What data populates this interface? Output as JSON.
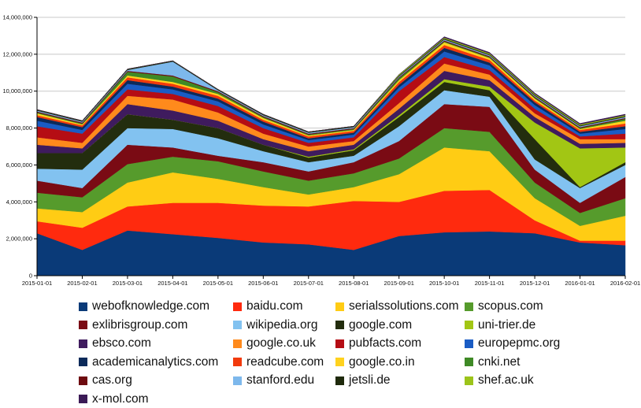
{
  "chart_data": {
    "type": "area",
    "stacked": true,
    "title": "",
    "xlabel": "",
    "ylabel": "",
    "ylim": [
      0,
      14000000
    ],
    "y_ticks": [
      "0",
      "2,000,000",
      "4,000,000",
      "6,000,000",
      "8,000,000",
      "10,000,000",
      "12,000,000",
      "14,000,000"
    ],
    "y_tick_values": [
      0,
      2000000,
      4000000,
      6000000,
      8000000,
      10000000,
      12000000,
      14000000
    ],
    "grid": true,
    "legend_position": "bottom",
    "x": [
      "2015-01-01",
      "2015-02-01",
      "2015-03-01",
      "2015-04-01",
      "2015-05-01",
      "2015-06-01",
      "2015-07-01",
      "2015-08-01",
      "2015-09-01",
      "2015-10-01",
      "2015-11-01",
      "2015-12-01",
      "2016-01-01",
      "2016-02-01"
    ],
    "series": [
      {
        "name": "webofknowledge.com",
        "color": "#0a3a78",
        "values": [
          2300000,
          1400000,
          2450000,
          2250000,
          2050000,
          1800000,
          1700000,
          1400000,
          2150000,
          2350000,
          2400000,
          2300000,
          1800000,
          1650000
        ]
      },
      {
        "name": "baidu.com",
        "color": "#ff2a0e",
        "values": [
          650000,
          1200000,
          1300000,
          1700000,
          1900000,
          2000000,
          2050000,
          2650000,
          1850000,
          2250000,
          2250000,
          700000,
          100000,
          250000
        ]
      },
      {
        "name": "serialssolutions.com",
        "color": "#ffcc14",
        "values": [
          700000,
          850000,
          1300000,
          1650000,
          1300000,
          1000000,
          650000,
          750000,
          1500000,
          2350000,
          2100000,
          1200000,
          800000,
          1350000
        ]
      },
      {
        "name": "scopus.com",
        "color": "#569b2c",
        "values": [
          850000,
          800000,
          1000000,
          850000,
          950000,
          850000,
          750000,
          750000,
          850000,
          1050000,
          1050000,
          850000,
          700000,
          950000
        ]
      },
      {
        "name": "exlibrisgroup.com",
        "color": "#7a0b14",
        "values": [
          650000,
          500000,
          1050000,
          500000,
          300000,
          500000,
          500000,
          600000,
          950000,
          1300000,
          1350000,
          700000,
          550000,
          1150000
        ]
      },
      {
        "name": "wikipedia.org",
        "color": "#82c2f0",
        "values": [
          650000,
          1000000,
          900000,
          1000000,
          950000,
          600000,
          500000,
          350000,
          800000,
          750000,
          550000,
          550000,
          800000,
          650000
        ]
      },
      {
        "name": "google.com",
        "color": "#232d0e",
        "values": [
          850000,
          900000,
          750000,
          500000,
          550000,
          350000,
          250000,
          300000,
          500000,
          450000,
          350000,
          1100000,
          50000,
          150000
        ]
      },
      {
        "name": "uni-trier.de",
        "color": "#a2c614",
        "values": [
          0,
          0,
          0,
          0,
          0,
          0,
          50000,
          50000,
          100000,
          150000,
          200000,
          900000,
          2100000,
          800000
        ]
      },
      {
        "name": "ebsco.com",
        "color": "#3f1b5e",
        "values": [
          450000,
          250000,
          550000,
          500000,
          400000,
          300000,
          300000,
          250000,
          350000,
          450000,
          350000,
          300000,
          250000,
          250000
        ]
      },
      {
        "name": "google.co.uk",
        "color": "#ff8a1c",
        "values": [
          400000,
          300000,
          450000,
          600000,
          450000,
          300000,
          250000,
          200000,
          300000,
          400000,
          300000,
          200000,
          250000,
          200000
        ]
      },
      {
        "name": "pubfacts.com",
        "color": "#b50d14",
        "values": [
          600000,
          500000,
          350000,
          300000,
          350000,
          300000,
          200000,
          200000,
          650000,
          350000,
          250000,
          250000,
          150000,
          300000
        ]
      },
      {
        "name": "europepmc.org",
        "color": "#1a5cc4",
        "values": [
          300000,
          200000,
          300000,
          250000,
          250000,
          200000,
          150000,
          150000,
          200000,
          300000,
          250000,
          200000,
          150000,
          250000
        ]
      },
      {
        "name": "academicanalytics.com",
        "color": "#0c2a5a",
        "values": [
          200000,
          150000,
          200000,
          150000,
          150000,
          150000,
          100000,
          100000,
          150000,
          200000,
          150000,
          150000,
          100000,
          150000
        ]
      },
      {
        "name": "readcube.com",
        "color": "#f23a0c",
        "values": [
          100000,
          100000,
          150000,
          150000,
          150000,
          100000,
          100000,
          100000,
          150000,
          150000,
          150000,
          100000,
          100000,
          150000
        ]
      },
      {
        "name": "google.co.in",
        "color": "#ffd21e",
        "values": [
          100000,
          50000,
          100000,
          100000,
          100000,
          100000,
          50000,
          50000,
          100000,
          150000,
          100000,
          100000,
          50000,
          150000
        ]
      },
      {
        "name": "cnki.net",
        "color": "#3f8a26",
        "values": [
          50000,
          50000,
          200000,
          300000,
          100000,
          50000,
          50000,
          50000,
          100000,
          50000,
          50000,
          50000,
          50000,
          100000
        ]
      },
      {
        "name": "cas.org",
        "color": "#6e0b10",
        "values": [
          50000,
          50000,
          50000,
          50000,
          50000,
          50000,
          50000,
          50000,
          50000,
          50000,
          50000,
          50000,
          50000,
          50000
        ]
      },
      {
        "name": "stanford.edu",
        "color": "#7db8ec",
        "values": [
          50000,
          50000,
          50000,
          750000,
          50000,
          50000,
          50000,
          50000,
          50000,
          50000,
          50000,
          50000,
          50000,
          50000
        ]
      },
      {
        "name": "jetsli.de",
        "color": "#1f2a0c",
        "values": [
          50000,
          50000,
          50000,
          50000,
          50000,
          50000,
          50000,
          50000,
          50000,
          50000,
          50000,
          50000,
          50000,
          50000
        ]
      },
      {
        "name": "shef.ac.uk",
        "color": "#9cc41a",
        "values": [
          0,
          0,
          0,
          0,
          0,
          0,
          0,
          0,
          50000,
          50000,
          50000,
          50000,
          50000,
          50000
        ]
      },
      {
        "name": "x-mol.com",
        "color": "#3b1a56",
        "values": [
          0,
          0,
          0,
          0,
          0,
          0,
          0,
          0,
          0,
          50000,
          50000,
          50000,
          50000,
          50000
        ]
      }
    ]
  }
}
